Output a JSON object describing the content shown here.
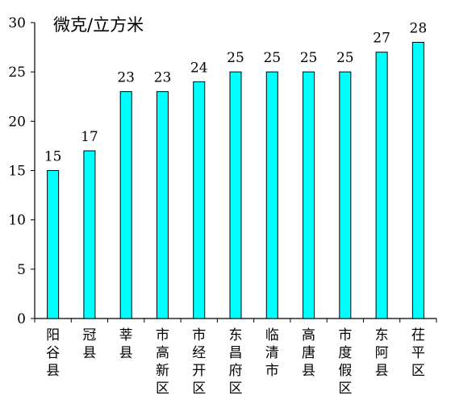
{
  "chart_data": {
    "type": "bar",
    "unit_label": "微克/立方米",
    "categories": [
      "阳谷县",
      "冠县",
      "莘县",
      "市高新区",
      "市经开区",
      "东昌府区",
      "临清市",
      "高唐县",
      "市度假区",
      "东阿县",
      "茌平区"
    ],
    "values": [
      15,
      17,
      23,
      23,
      24,
      25,
      25,
      25,
      25,
      27,
      28
    ],
    "ylim": [
      0,
      30
    ],
    "yticks": [
      0,
      5,
      10,
      15,
      20,
      25,
      30
    ],
    "grid": false,
    "legend": "none",
    "bar_color": "#00FFFF",
    "bar_edge_color": "#000000"
  }
}
